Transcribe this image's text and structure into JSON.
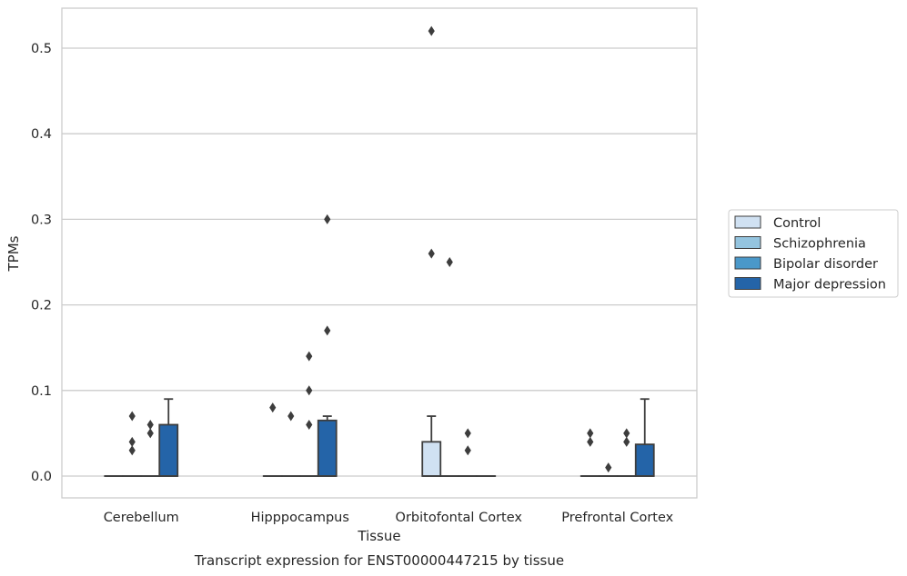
{
  "chart_data": {
    "type": "box",
    "title": "",
    "caption": "Transcript expression for ENST00000447215 by tissue",
    "xlabel": "Tissue",
    "ylabel": "TPMs",
    "ylim": [
      -0.025,
      0.547
    ],
    "yticks": [
      "0.0",
      "0.1",
      "0.2",
      "0.3",
      "0.4",
      "0.5"
    ],
    "grid": "horizontal",
    "legend_position": "right",
    "categories": [
      "Cerebellum",
      "Hipppocampus",
      "Orbitofontal Cortex",
      "Prefrontal Cortex"
    ],
    "series": [
      {
        "name": "Control",
        "color": "#d0e1f2",
        "boxes": [
          {
            "q1": 0,
            "median": 0,
            "q3": 0,
            "whisker_low": 0,
            "whisker_high": 0,
            "outliers": []
          },
          {
            "q1": 0,
            "median": 0,
            "q3": 0,
            "whisker_low": 0,
            "whisker_high": 0,
            "outliers": [
              0.08
            ]
          },
          {
            "q1": 0,
            "median": 0,
            "q3": 0.04,
            "whisker_low": 0,
            "whisker_high": 0.07,
            "outliers": [
              0.52,
              0.26
            ]
          },
          {
            "q1": 0,
            "median": 0,
            "q3": 0,
            "whisker_low": 0,
            "whisker_high": 0,
            "outliers": [
              0.05,
              0.04
            ]
          }
        ]
      },
      {
        "name": "Schizophrenia",
        "color": "#94c4df",
        "boxes": [
          {
            "q1": 0,
            "median": 0,
            "q3": 0,
            "whisker_low": 0,
            "whisker_high": 0,
            "outliers": [
              0.07,
              0.04,
              0.03
            ]
          },
          {
            "q1": 0,
            "median": 0,
            "q3": 0,
            "whisker_low": 0,
            "whisker_high": 0,
            "outliers": [
              0.07
            ]
          },
          {
            "q1": 0,
            "median": 0,
            "q3": 0,
            "whisker_low": 0,
            "whisker_high": 0,
            "outliers": [
              0.25
            ]
          },
          {
            "q1": 0,
            "median": 0,
            "q3": 0,
            "whisker_low": 0,
            "whisker_high": 0,
            "outliers": [
              0.01
            ]
          }
        ]
      },
      {
        "name": "Bipolar disorder",
        "color": "#4a98c9",
        "boxes": [
          {
            "q1": 0,
            "median": 0,
            "q3": 0,
            "whisker_low": 0,
            "whisker_high": 0,
            "outliers": [
              0.06,
              0.05
            ]
          },
          {
            "q1": 0,
            "median": 0,
            "q3": 0,
            "whisker_low": 0,
            "whisker_high": 0,
            "outliers": [
              0.14,
              0.1,
              0.06
            ]
          },
          {
            "q1": 0,
            "median": 0,
            "q3": 0,
            "whisker_low": 0,
            "whisker_high": 0,
            "outliers": [
              0.05,
              0.03
            ]
          },
          {
            "q1": 0,
            "median": 0,
            "q3": 0,
            "whisker_low": 0,
            "whisker_high": 0,
            "outliers": [
              0.05,
              0.04
            ]
          }
        ]
      },
      {
        "name": "Major depression",
        "color": "#2464a8",
        "boxes": [
          {
            "q1": 0,
            "median": 0,
            "q3": 0.06,
            "whisker_low": 0,
            "whisker_high": 0.09,
            "outliers": []
          },
          {
            "q1": 0,
            "median": 0,
            "q3": 0.065,
            "whisker_low": 0,
            "whisker_high": 0.07,
            "outliers": [
              0.3,
              0.17
            ]
          },
          {
            "q1": 0,
            "median": 0,
            "q3": 0,
            "whisker_low": 0,
            "whisker_high": 0,
            "outliers": []
          },
          {
            "q1": 0,
            "median": 0,
            "q3": 0.037,
            "whisker_low": 0,
            "whisker_high": 0.09,
            "outliers": []
          }
        ]
      }
    ]
  }
}
